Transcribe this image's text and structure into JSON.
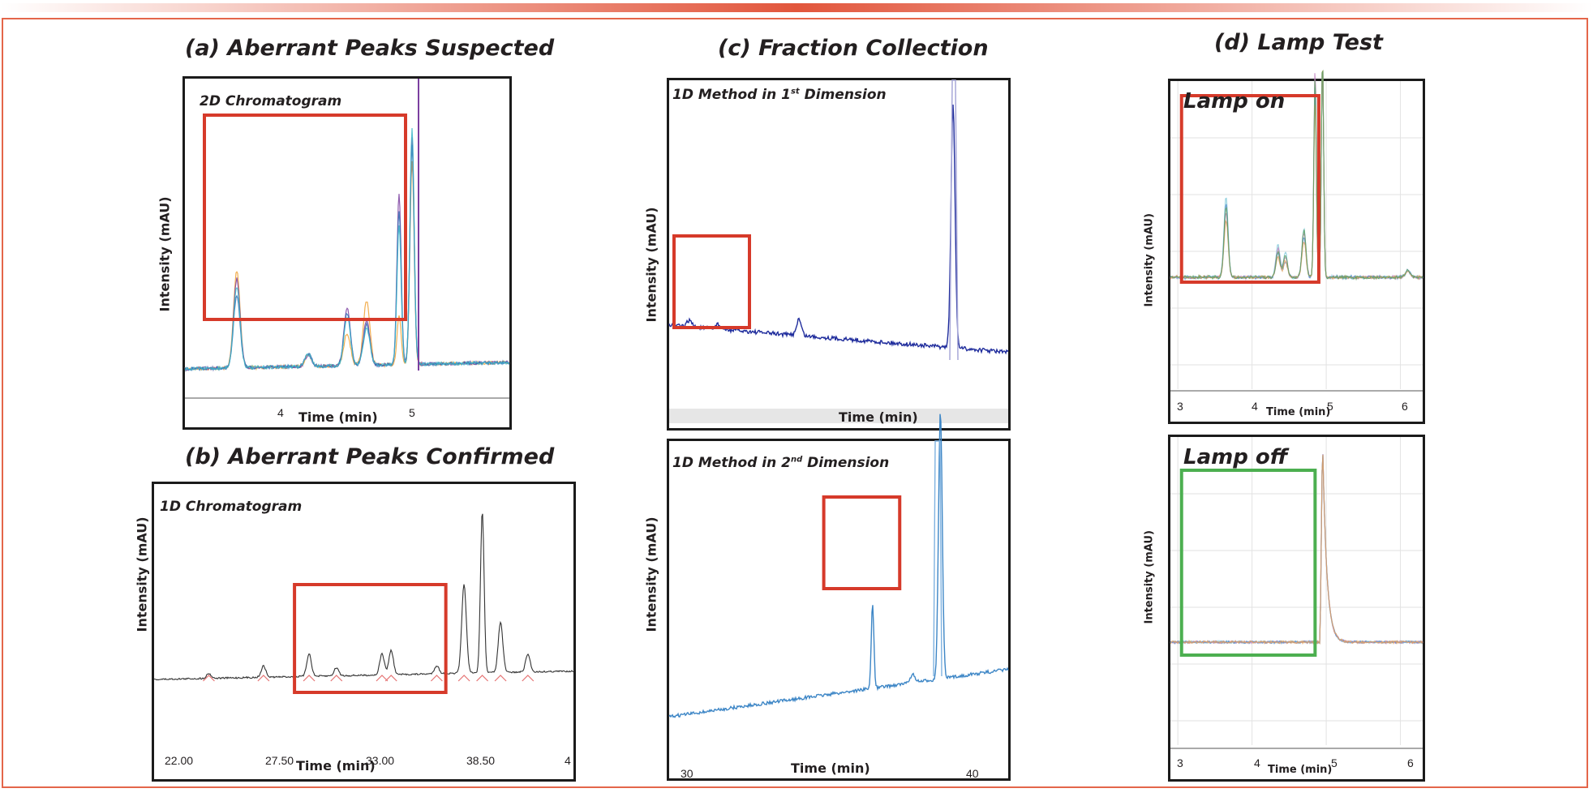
{
  "colors": {
    "accent": "#e4664a",
    "highlight_red": "#d63a2a",
    "highlight_green": "#4caf50",
    "trace_navy": "#1f2c9c",
    "trace_blue": "#3d86c6"
  },
  "chart_data": [
    {
      "type": "line",
      "id": "a",
      "title": "(a) Aberrant Peaks Suspected",
      "inner_label": "2D Chromatogram",
      "xlabel": "Time (min)",
      "ylabel": "Intensity (mAU)",
      "xticks": [
        "4",
        "5"
      ],
      "xlim": [
        3.2,
        5.7
      ],
      "peaks_min": [
        3.6,
        4.15,
        4.45,
        4.6,
        4.85,
        4.95
      ],
      "highlight": {
        "color": "red",
        "x_range": [
          3.35,
          4.9
        ]
      }
    },
    {
      "type": "line",
      "id": "b",
      "title": "(b) Aberrant Peaks Confirmed",
      "inner_label": "1D Chromatogram",
      "xlabel": "Time (min)",
      "ylabel": "Intensity (mAU)",
      "xticks": [
        "22.00",
        "27.50",
        "33.00",
        "38.50",
        "4"
      ],
      "xlim": [
        20.5,
        43.5
      ],
      "peaks_min": [
        23.5,
        26.5,
        29,
        30.5,
        33,
        33.5,
        36,
        37.5,
        38.5,
        39.5,
        41
      ],
      "highlight": {
        "color": "red",
        "x_range": [
          28.2,
          36.5
        ]
      }
    },
    {
      "type": "line",
      "id": "c1",
      "title": "(c) Fraction Collection",
      "inner_label": "1D Method in 1st Dimension",
      "xlabel": "Time (min)",
      "ylabel": "Intensity (mAU)",
      "peaks_description": "noisy baseline with small peak near box and large peak at right",
      "highlight": {
        "color": "red",
        "x_range": "left segment"
      }
    },
    {
      "type": "line",
      "id": "c2",
      "inner_label": "1D Method in 2nd Dimension",
      "xlabel": "Time (min)",
      "ylabel": "Intensity (mAU)",
      "xticks": [
        "30",
        "40"
      ],
      "xlim": [
        29.5,
        42
      ],
      "peaks_min": [
        37,
        39.5
      ],
      "highlight": {
        "color": "red",
        "x_range": [
          35.2,
          38
        ]
      }
    },
    {
      "type": "line",
      "id": "d1",
      "title": "(d) Lamp Test",
      "inner_label": "Lamp on",
      "xlabel": "Time (min)",
      "ylabel": "Intensity (mAU)",
      "xticks": [
        "3",
        "4",
        "5",
        "6"
      ],
      "xlim": [
        2.9,
        6.3
      ],
      "peaks_min": [
        3.65,
        4.35,
        4.45,
        4.7,
        4.85
      ],
      "highlight": {
        "color": "red",
        "x_range": [
          3.05,
          4.9
        ]
      }
    },
    {
      "type": "line",
      "id": "d2",
      "inner_label": "Lamp off",
      "xlabel": "Time (min)",
      "ylabel": "Intensity (mAU)",
      "xticks": [
        "3",
        "4",
        "5",
        "6"
      ],
      "xlim": [
        2.9,
        6.3
      ],
      "peaks_min": [
        4.95
      ],
      "highlight": {
        "color": "green",
        "x_range": [
          3.05,
          4.85
        ]
      }
    }
  ],
  "text": {
    "title_a": "(a) Aberrant Peaks Suspected",
    "title_b": "(b) Aberrant Peaks Confirmed",
    "title_c": "(c) Fraction Collection",
    "title_d": "(d) Lamp Test",
    "label_a": "2D Chromatogram",
    "label_b": "1D Chromatogram",
    "label_c1_pre": "1D Method in 1",
    "label_c1_sup": "st",
    "label_c1_post": " Dimension",
    "label_c2_pre": "1D Method in 2",
    "label_c2_sup": "nd",
    "label_c2_post": " Dimension",
    "label_d1": "Lamp on",
    "label_d2": "Lamp off",
    "ylabel": "Intensity (mAU)",
    "xlabel": "Time (min)",
    "a_ticks": [
      "4",
      "5"
    ],
    "b_ticks": [
      "22.00",
      "27.50",
      "33.00",
      "38.50",
      "4"
    ],
    "c2_ticks": [
      "30",
      "40"
    ],
    "d_ticks": [
      "3",
      "4",
      "5",
      "6"
    ]
  }
}
